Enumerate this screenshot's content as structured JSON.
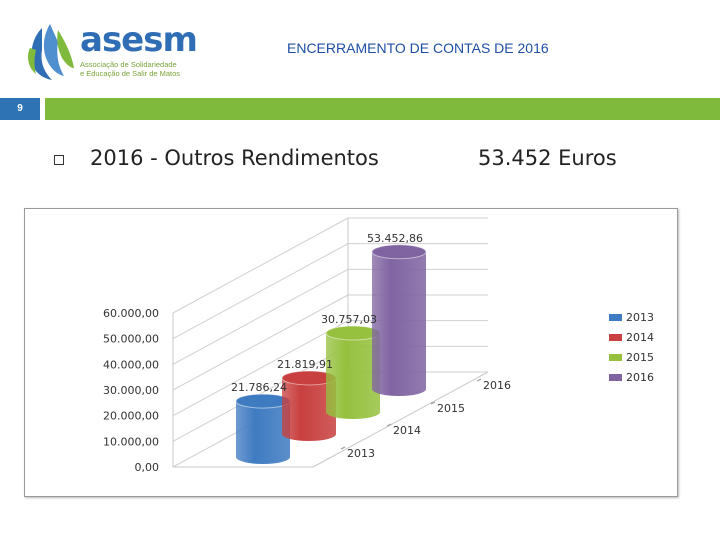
{
  "header": {
    "logo_word": "asesm",
    "logo_sub_1": "Associação de Solidariedade",
    "logo_sub_2": "e Educação de Salir de Matos",
    "title": "ENCERRAMENTO DE CONTAS DE 2016",
    "slide_number": "9"
  },
  "content": {
    "heading": "2016  -  Outros Rendimentos",
    "amount": "53.452 Euros"
  },
  "colors": {
    "brand_blue": "#2e74b5",
    "brand_green": "#7fba3d"
  },
  "chart_data": {
    "type": "bar",
    "title": "",
    "categories": [
      "2013",
      "2014",
      "2015",
      "2016"
    ],
    "values": [
      21786.24,
      21819.91,
      30757.03,
      53452.86
    ],
    "value_labels": [
      "21.786,24",
      "21.819,91",
      "30.757,03",
      "53.452,86"
    ],
    "y_ticks": [
      "0,00",
      "10.000,00",
      "20.000,00",
      "30.000,00",
      "40.000,00",
      "50.000,00",
      "60.000,00"
    ],
    "ylim": [
      0,
      60000
    ],
    "legend": [
      "2013",
      "2014",
      "2015",
      "2016"
    ],
    "legend_position": "right",
    "series_colors": [
      "#3f7bc1",
      "#c8403f",
      "#95c13e",
      "#8064a2"
    ],
    "grid": true,
    "style": "3d-cylinder"
  }
}
